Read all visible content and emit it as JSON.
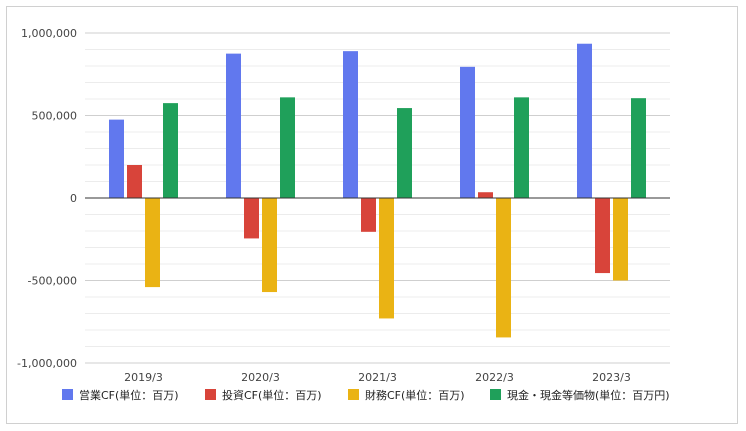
{
  "chart_data": {
    "type": "bar",
    "title": "",
    "xlabel": "",
    "ylabel": "",
    "categories": [
      "2019/3",
      "2020/3",
      "2021/3",
      "2022/3",
      "2023/3"
    ],
    "ylim": [
      -1000000,
      1000000
    ],
    "yticks": [
      -1000000,
      -500000,
      0,
      500000,
      1000000
    ],
    "ytick_labels": [
      "-1,000,000",
      "-500,000",
      "0",
      "500,000",
      "1,000,000"
    ],
    "grid": true,
    "legend_position": "bottom",
    "series": [
      {
        "name": "営業CF(単位：百万)",
        "color": "#6178ee",
        "values": [
          475000,
          875000,
          890000,
          795000,
          935000
        ]
      },
      {
        "name": "投資CF(単位：百万)",
        "color": "#d8443a",
        "values": [
          200000,
          -245000,
          -205000,
          35000,
          -455000
        ]
      },
      {
        "name": "財務CF(単位：百万)",
        "color": "#eab314",
        "values": [
          -540000,
          -570000,
          -730000,
          -845000,
          -500000
        ]
      },
      {
        "name": "現金・現金等価物(単位：百万円)",
        "color": "#1fa05a",
        "values": [
          575000,
          610000,
          545000,
          610000,
          605000
        ]
      }
    ]
  }
}
